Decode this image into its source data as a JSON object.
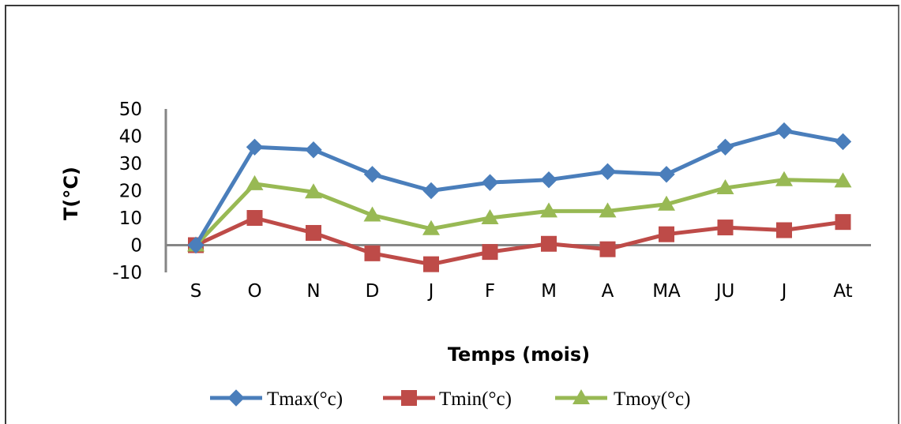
{
  "chart_data": {
    "type": "line",
    "categories": [
      "S",
      "O",
      "N",
      "D",
      "J",
      "F",
      "M",
      "A",
      "MA",
      "JU",
      "J",
      "At"
    ],
    "series": [
      {
        "name": "Tmax(°c)",
        "color": "#4a7ebb",
        "marker": "diamond",
        "values": [
          0,
          36,
          35,
          26,
          20,
          23,
          24,
          27,
          26,
          36,
          42,
          38
        ]
      },
      {
        "name": "Tmin(°c)",
        "color": "#be4b48",
        "marker": "square",
        "values": [
          0,
          10,
          4.5,
          -3,
          -7,
          -2.5,
          0.5,
          -1.5,
          4,
          6.5,
          5.5,
          8.5
        ]
      },
      {
        "name": "Tmoy(°c)",
        "color": "#98b954",
        "marker": "triangle",
        "values": [
          0,
          22.5,
          19.5,
          11,
          6,
          10,
          12.5,
          12.5,
          15,
          21,
          24,
          23.5
        ]
      }
    ],
    "title": "",
    "xlabel": "Temps (mois)",
    "ylabel": "T(°C)",
    "ylim": [
      -10,
      50
    ],
    "yticks": [
      -10,
      0,
      10,
      20,
      30,
      40,
      50
    ],
    "grid": false,
    "legend_position": "bottom"
  }
}
